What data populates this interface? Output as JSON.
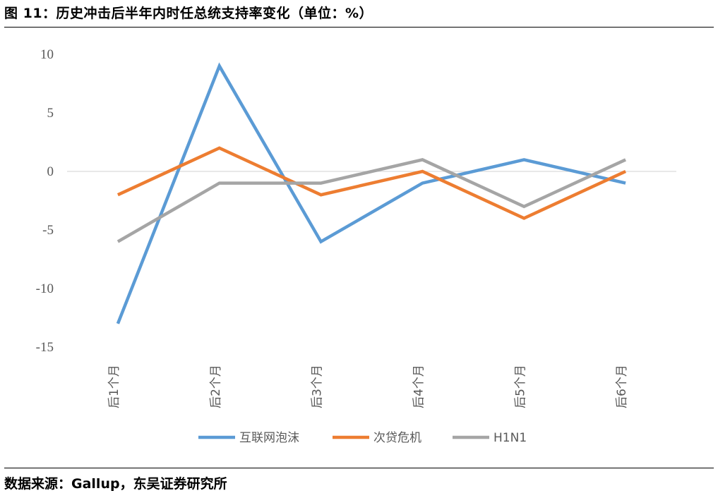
{
  "figure": {
    "title": "图 11：历史冲击后半年内时任总统支持率变化（单位：%）",
    "source": "数据来源：Gallup，东吴证券研究所"
  },
  "chart_data": {
    "type": "line",
    "categories": [
      "后1个月",
      "后2个月",
      "后3个月",
      "后4个月",
      "后5个月",
      "后6个月"
    ],
    "series": [
      {
        "name": "互联网泡沫",
        "color": "#5B9BD5",
        "values": [
          -13,
          9,
          -6,
          -1,
          1,
          -1
        ]
      },
      {
        "name": "次贷危机",
        "color": "#ED7D31",
        "values": [
          -2,
          2,
          -2,
          0,
          -4,
          0
        ]
      },
      {
        "name": "H1N1",
        "color": "#A5A5A5",
        "values": [
          -6,
          -1,
          -1,
          1,
          -3,
          1
        ]
      }
    ],
    "ylim": [
      -15,
      10
    ],
    "yticks": [
      "10",
      "5",
      "0",
      "-5",
      "-10",
      "-15"
    ],
    "ytick_values": [
      10,
      5,
      0,
      -5,
      -10,
      -15
    ],
    "grid": false,
    "zero_line": true,
    "legend_position": "bottom"
  }
}
